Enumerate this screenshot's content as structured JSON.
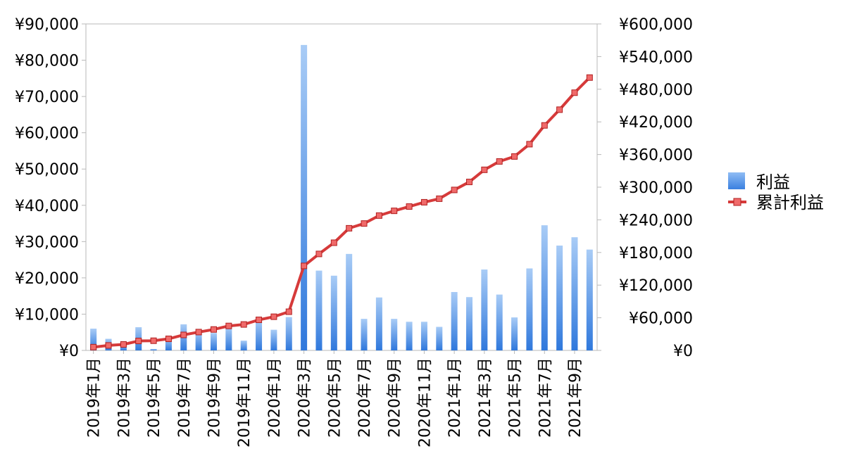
{
  "chart_data": {
    "type": "bar",
    "title": "",
    "xlabel": "",
    "ylabel": "",
    "categories": [
      "2019年1月",
      "2019年2月",
      "2019年3月",
      "2019年4月",
      "2019年5月",
      "2019年6月",
      "2019年7月",
      "2019年8月",
      "2019年9月",
      "2019年10月",
      "2019年11月",
      "2019年12月",
      "2020年1月",
      "2020年2月",
      "2020年3月",
      "2020年4月",
      "2020年5月",
      "2020年6月",
      "2020年7月",
      "2020年8月",
      "2020年9月",
      "2020年10月",
      "2020年11月",
      "2020年12月",
      "2021年1月",
      "2021年2月",
      "2021年3月",
      "2021年4月",
      "2021年5月",
      "2021年6月",
      "2021年7月",
      "2021年8月",
      "2021年9月",
      "2021年10月"
    ],
    "x_tick_labels": [
      "2019年1月",
      "2019年3月",
      "2019年5月",
      "2019年7月",
      "2019年9月",
      "2019年11月",
      "2020年1月",
      "2020年3月",
      "2020年5月",
      "2020年7月",
      "2020年9月",
      "2020年11月",
      "2021年1月",
      "2021年3月",
      "2021年5月",
      "2021年7月",
      "2021年9月"
    ],
    "series": [
      {
        "name": "利益",
        "type": "bar",
        "axis": "left",
        "color": "#4a8fe6",
        "values": [
          6000,
          3200,
          1800,
          6400,
          400,
          3500,
          7200,
          5200,
          4800,
          6500,
          2700,
          8500,
          5700,
          9200,
          84200,
          22000,
          20600,
          26600,
          8700,
          14600,
          8700,
          7900,
          7900,
          6500,
          16100,
          14700,
          22300,
          15400,
          9100,
          22600,
          34500,
          28900,
          31200,
          27800
        ]
      },
      {
        "name": "累計利益",
        "type": "line",
        "axis": "right",
        "color": "#d63a3a",
        "values": [
          6000,
          9200,
          11000,
          17400,
          17800,
          21300,
          28500,
          33700,
          38500,
          45000,
          47700,
          56200,
          61900,
          71100,
          155300,
          177300,
          197900,
          224500,
          233200,
          247800,
          256500,
          264400,
          272300,
          278800,
          294900,
          309600,
          331900,
          347300,
          356400,
          379000,
          413500,
          442400,
          473600,
          501400
        ]
      }
    ],
    "y_left": {
      "ylim": [
        0,
        90000
      ],
      "ticks": [
        "¥0",
        "¥10,000",
        "¥20,000",
        "¥30,000",
        "¥40,000",
        "¥50,000",
        "¥60,000",
        "¥70,000",
        "¥80,000",
        "¥90,000"
      ]
    },
    "y_right": {
      "ylim": [
        0,
        600000
      ],
      "ticks": [
        "¥0",
        "¥60,000",
        "¥120,000",
        "¥180,000",
        "¥240,000",
        "¥300,000",
        "¥360,000",
        "¥420,000",
        "¥480,000",
        "¥540,000",
        "¥600,000"
      ]
    },
    "grid": false,
    "legend": {
      "position": "right",
      "entries": [
        "利益",
        "累計利益"
      ]
    }
  }
}
